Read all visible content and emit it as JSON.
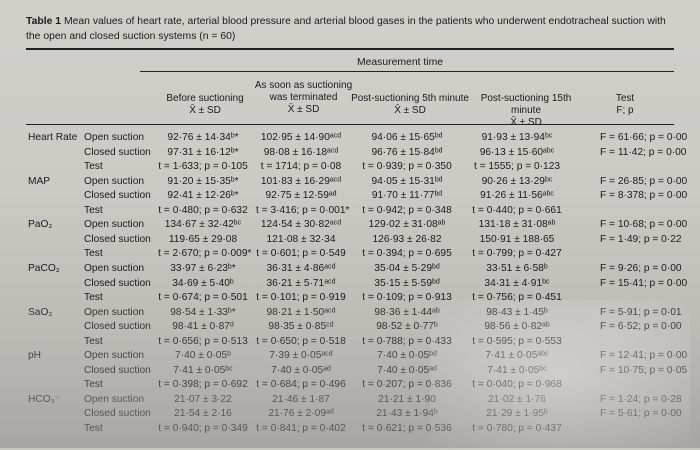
{
  "caption": {
    "label": "Table 1",
    "text": "Mean values of heart rate, arterial blood pressure and arterial blood gases in the patients who underwent endotracheal suction with the open and closed suction systems (n = 60)"
  },
  "measurement_time": "Measurement time",
  "columns": [
    {
      "line1": "Before suctioning",
      "line2": "X̄ ± SD"
    },
    {
      "line1": "As soon as suctioning",
      "line2": "was terminated",
      "line3": "X̄ ± SD"
    },
    {
      "line1": "Post-suctioning 5th minute",
      "line2": "X̄ ± SD"
    },
    {
      "line1": "Post-suctioning 15th minute",
      "line2": "X̄ ± SD"
    },
    {
      "line1": "Test",
      "line2": "F; p"
    }
  ],
  "rows": [
    {
      "param": "Heart Rate",
      "sub": "Open suction",
      "c1": "92·76 ± 14·34ᵇ*",
      "c2": "102·95 ± 14·90ᵃᶜᵈ",
      "c3": "94·06 ± 15·65ᵇᵈ",
      "c4": "91·93 ± 13·94ᵇᶜ",
      "c5": "F = 61·66; p = 0·00"
    },
    {
      "param": "",
      "sub": "Closed suction",
      "c1": "97·31 ± 16·12ᵇ*",
      "c2": "98·08 ± 16·18ᵃᶜᵈ",
      "c3": "96·76 ± 15·84ᵇᵈ",
      "c4": "96·13 ± 15·60ᵃᵇᶜ",
      "c5": "F = 11·42; p = 0·00"
    },
    {
      "param": "",
      "sub": "Test",
      "c1": "t = 1·633; p = 0·105",
      "c2": "t = 1714; p = 0·08",
      "c3": "t = 0·939; p = 0·350",
      "c4": "t = 1555; p = 0·123",
      "c5": ""
    },
    {
      "param": "MAP",
      "sub": "Open suction",
      "c1": "91·20 ± 15·35ᵇ*",
      "c2": "101·83 ± 16·29ᵃᶜᵈ",
      "c3": "94·05 ± 15·31ᵇᵈ",
      "c4": "90·26 ± 13·29ᵇᶜ",
      "c5": "F = 26·85; p = 0·00"
    },
    {
      "param": "",
      "sub": "Closed suction",
      "c1": "92·41 ± 12·26ᵇ*",
      "c2": "92·75 ± 12·59ᵃᵈ",
      "c3": "91·70 ± 11·77ᵇᵈ",
      "c4": "91·26 ± 11·56ᵃᵇᶜ",
      "c5": "F = 8·378; p = 0·00"
    },
    {
      "param": "",
      "sub": "Test",
      "c1": "t = 0·480; p = 0·632",
      "c2": "t = 3·416; p = 0·001*",
      "c3": "t = 0·942; p = 0·348",
      "c4": "t = 0·440; p = 0·661",
      "c5": ""
    },
    {
      "param": "PaO₂",
      "sub": "Open suction",
      "c1": "134·67 ± 32·42ᵇᶜ",
      "c2": "124·54 ± 30·82ᵃᶜᵈ",
      "c3": "129·02 ± 31·08ᵃᵇ",
      "c4": "131·18 ± 31·08ᵃᵇ",
      "c5": "F = 10·68; p = 0·00"
    },
    {
      "param": "",
      "sub": "Closed suction",
      "c1": "119·65 ± 29·08",
      "c2": "121·08 ± 32·34",
      "c3": "126·93 ± 26·82",
      "c4": "150·91 ± 188·65",
      "c5": "F = 1·49; p = 0·22"
    },
    {
      "param": "",
      "sub": "Test",
      "c1": "t = 2·670; p = 0·009*",
      "c2": "t = 0·601; p = 0·549",
      "c3": "t = 0·394; p = 0·695",
      "c4": "t = 0·799; p = 0·427",
      "c5": ""
    },
    {
      "param": "PaCO₂",
      "sub": "Open suction",
      "c1": "33·97 ± 6·23ᵇ*",
      "c2": "36·31 ± 4·86ᵃᶜᵈ",
      "c3": "35·04 ± 5·29ᵇᵈ",
      "c4": "33·51 ± 6·58ᵇ",
      "c5": "F = 9·26; p = 0·00"
    },
    {
      "param": "",
      "sub": "Closed suction",
      "c1": "34·69 ± 5·40ᵇ",
      "c2": "36·21 ± 5·71ᵃᶜᵈ",
      "c3": "35·15 ± 5·59ᵇᵈ",
      "c4": "34·31 ± 4·91ᵇᶜ",
      "c5": "F = 15·41; p = 0·00"
    },
    {
      "param": "",
      "sub": "Test",
      "c1": "t = 0·674; p = 0·501",
      "c2": "t = 0·101; p = 0·919",
      "c3": "t = 0·109; p = 0·913",
      "c4": "t = 0·756; p = 0·451",
      "c5": ""
    },
    {
      "param": "SaO₂",
      "sub": "Open suction",
      "c1": "98·54 ± 1·33ᵇ*",
      "c2": "98·21 ± 1·50ᵃᶜᵈ",
      "c3": "98·36 ± 1·44ᵃᵇ",
      "c4": "98·43 ± 1·45ᵇ",
      "c5": "F = 5·91; p = 0·01"
    },
    {
      "param": "",
      "sub": "Closed suction",
      "c1": "98·41 ± 0·87ᵈ",
      "c2": "98·35 ± 0·85ᶜᵈ",
      "c3": "98·52 ± 0·77ᵇ",
      "c4": "98·56 ± 0·82ᵃᵇ",
      "c5": "F = 6·52; p = 0·00"
    },
    {
      "param": "",
      "sub": "Test",
      "c1": "t = 0·656; p = 0·513",
      "c2": "t = 0·650; p = 0·518",
      "c3": "t = 0·788; p = 0·433",
      "c4": "t = 0·595; p = 0·553",
      "c5": ""
    },
    {
      "param": "pH",
      "sub": "Open suction",
      "c1": "7·40 ± 0·05ᵇ",
      "c2": "7·39 ± 0·05ᵃᶜᵈ",
      "c3": "7·40 ± 0·05ᵇᵈ",
      "c4": "7·41 ± 0·05ᵃᵇᶜ",
      "c5": "F = 12·41; p = 0·00"
    },
    {
      "param": "",
      "sub": "Closed suction",
      "c1": "7·41 ± 0·05ᵇᶜ",
      "c2": "7·40 ± 0·05ᵃᵈ",
      "c3": "7·40 ± 0·05ᵃᵈ",
      "c4": "7·41 ± 0·05ᵇᶜ",
      "c5": "F = 10·75; p = 0·05"
    },
    {
      "param": "",
      "sub": "Test",
      "c1": "t = 0·398; p = 0·692",
      "c2": "t = 0·684; p = 0·496",
      "c3": "t = 0·207; p = 0·836",
      "c4": "t = 0·040; p = 0·968",
      "c5": ""
    },
    {
      "param": "HCO₃⁻",
      "sub": "Open suction",
      "c1": "21·07 ± 3·22",
      "c2": "21·46 ± 1·87",
      "c3": "21·21 ± 1·90",
      "c4": "21·02 ± 1·76",
      "c5": "F = 1·24; p = 0·28"
    },
    {
      "param": "",
      "sub": "Closed suction",
      "c1": "21·54 ± 2·16",
      "c2": "21·76 ± 2·09ᵃᵈ",
      "c3": "21·43 ± 1·94ᵇ",
      "c4": "21·29 ± 1·95ᵇ",
      "c5": "F = 5·61; p = 0·00"
    },
    {
      "param": "",
      "sub": "Test",
      "c1": "t = 0·940; p = 0·349",
      "c2": "t = 0·841; p = 0·402",
      "c3": "t = 0·621; p = 0·536",
      "c4": "t = 0·780; p = 0·437",
      "c5": ""
    }
  ]
}
